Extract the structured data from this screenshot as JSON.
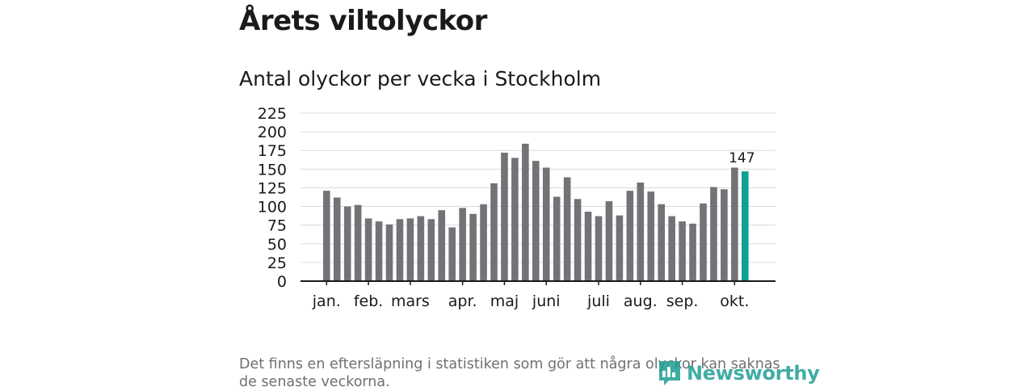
{
  "header": {
    "title": "Årets viltolyckor",
    "subtitle": "Antal olyckor per vecka i Stockholm"
  },
  "footer": {
    "note": "Det finns en eftersläpning i statistiken som gör att några olyckor kan saknas de senaste veckorna.",
    "brand": "Newsworthy"
  },
  "colors": {
    "bar": "#737277",
    "highlight": "#0fa196",
    "grid": "#d9d9d9",
    "axis": "#1a1a1a",
    "brand": "#1f9e93"
  },
  "chart_data": {
    "type": "bar",
    "title": "Antal olyckor per vecka i Stockholm",
    "xlabel": "",
    "ylabel": "",
    "ylim": [
      0,
      225
    ],
    "yticks": [
      0,
      25,
      50,
      75,
      100,
      125,
      150,
      175,
      200,
      225
    ],
    "grid": true,
    "weeks": [
      1,
      2,
      3,
      4,
      5,
      6,
      7,
      8,
      9,
      10,
      11,
      12,
      13,
      14,
      15,
      16,
      17,
      18,
      19,
      20,
      21,
      22,
      23,
      24,
      25,
      26,
      27,
      28,
      29,
      30,
      31,
      32,
      33,
      34,
      35,
      36,
      37,
      38,
      39,
      40,
      41
    ],
    "values": [
      121,
      112,
      100,
      102,
      84,
      80,
      76,
      83,
      84,
      87,
      83,
      95,
      72,
      98,
      90,
      103,
      131,
      172,
      165,
      184,
      161,
      152,
      113,
      139,
      110,
      93,
      87,
      107,
      88,
      121,
      132,
      120,
      103,
      87,
      80,
      77,
      104,
      126,
      123,
      152,
      147
    ],
    "highlight_index": 40,
    "highlight_label": "147",
    "month_labels": [
      {
        "label": "jan.",
        "week": 1
      },
      {
        "label": "feb.",
        "week": 5
      },
      {
        "label": "mars",
        "week": 9
      },
      {
        "label": "apr.",
        "week": 14
      },
      {
        "label": "maj",
        "week": 18
      },
      {
        "label": "juni",
        "week": 22
      },
      {
        "label": "juli",
        "week": 27
      },
      {
        "label": "aug.",
        "week": 31
      },
      {
        "label": "sep.",
        "week": 35
      },
      {
        "label": "okt.",
        "week": 40
      }
    ]
  }
}
